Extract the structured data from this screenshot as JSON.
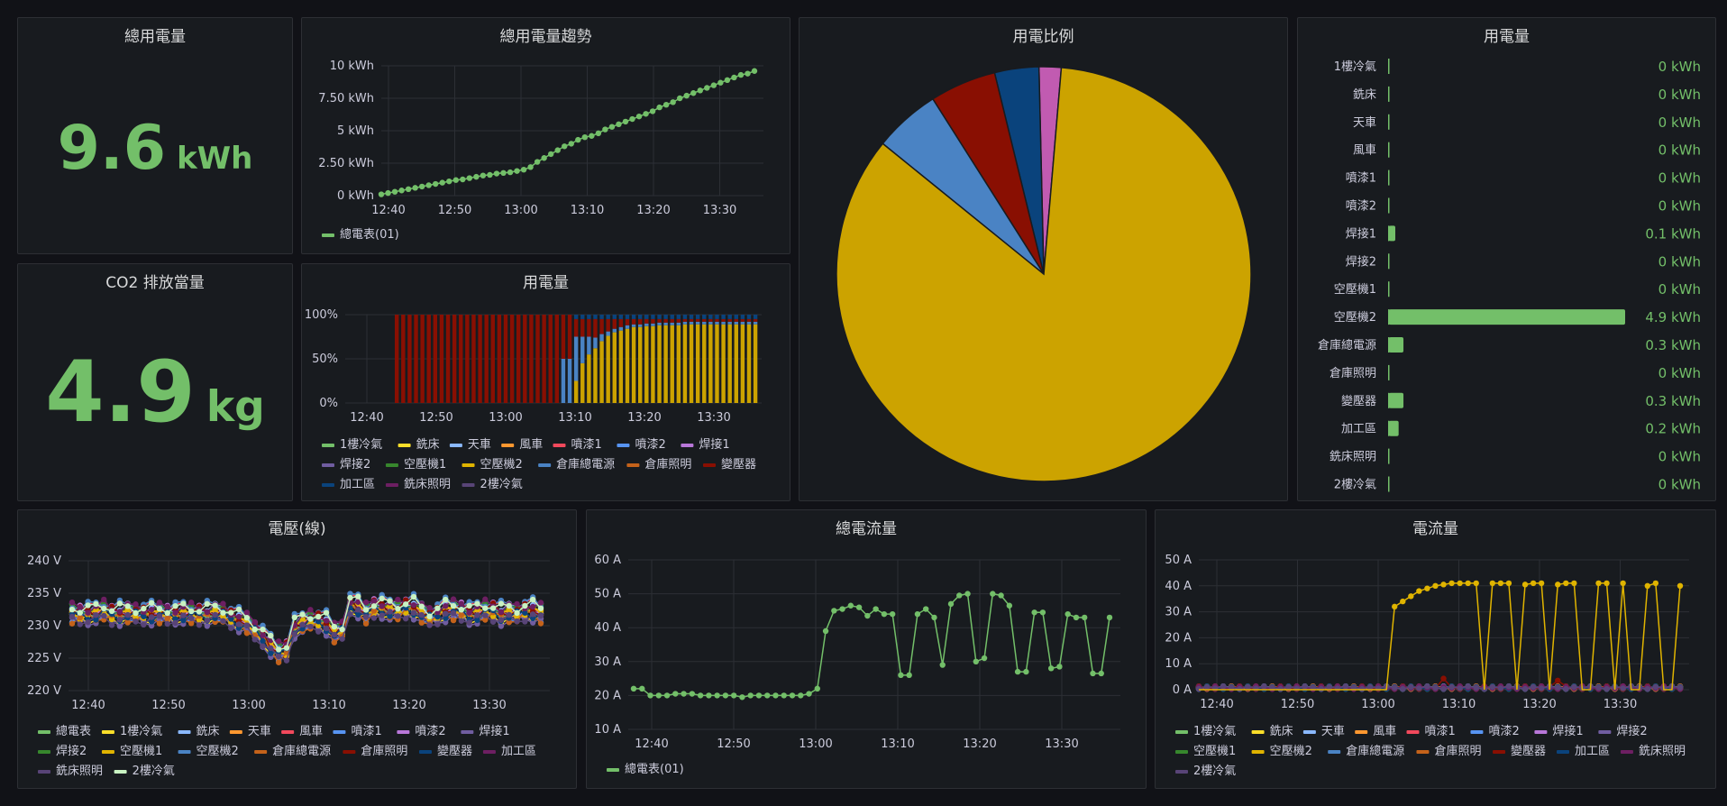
{
  "colors": {
    "green": "#73bf69",
    "yellow": "#cca300",
    "blue": "#4a83c4",
    "darkred": "#890f02",
    "navy": "#0a437c",
    "magenta": "#c15bb1",
    "grid": "#2c2f35",
    "axis": "#ccccdc"
  },
  "panels": {
    "total": {
      "title": "總用電量",
      "value": "9.6",
      "unit": "kWh"
    },
    "co2": {
      "title": "CO2 排放當量",
      "value": "4.9",
      "unit": "kg"
    },
    "trend": {
      "title": "總用電量趨勢"
    },
    "usage_stack": {
      "title": "用電量"
    },
    "pie": {
      "title": "用電比例"
    },
    "bargauge": {
      "title": "用電量"
    },
    "voltage": {
      "title": "電壓(線)"
    },
    "total_current": {
      "title": "總電流量"
    },
    "current": {
      "title": "電流量"
    }
  },
  "chart_data": [
    {
      "id": "trend",
      "type": "line",
      "x_ticks": [
        "12:40",
        "12:50",
        "13:00",
        "13:10",
        "13:20",
        "13:30"
      ],
      "y_ticks": [
        "0 kWh",
        "2.50 kWh",
        "5 kWh",
        "7.50 kWh",
        "10 kWh"
      ],
      "ylim": [
        0,
        10
      ],
      "series": [
        {
          "name": "總電表(01)",
          "color": "#73bf69",
          "values": [
            0.1,
            0.2,
            0.3,
            0.4,
            0.5,
            0.6,
            0.7,
            0.8,
            0.9,
            1.0,
            1.1,
            1.2,
            1.25,
            1.35,
            1.45,
            1.55,
            1.6,
            1.7,
            1.75,
            1.8,
            1.9,
            2.0,
            2.2,
            2.6,
            2.9,
            3.2,
            3.5,
            3.8,
            4.0,
            4.3,
            4.5,
            4.6,
            4.8,
            5.1,
            5.3,
            5.5,
            5.7,
            5.9,
            6.1,
            6.3,
            6.5,
            6.8,
            7.0,
            7.2,
            7.5,
            7.7,
            7.9,
            8.1,
            8.3,
            8.5,
            8.7,
            8.9,
            9.1,
            9.3,
            9.4,
            9.6
          ]
        }
      ]
    },
    {
      "id": "usage_stack",
      "type": "bar",
      "x_ticks": [
        "12:40",
        "12:50",
        "13:00",
        "13:10",
        "13:20",
        "13:30"
      ],
      "y_ticks": [
        "0%",
        "50%",
        "100%"
      ],
      "legend": [
        {
          "name": "1樓冷氣",
          "color": "#73bf69"
        },
        {
          "name": "銑床",
          "color": "#fade2a"
        },
        {
          "name": "天車",
          "color": "#8ab8ff"
        },
        {
          "name": "風車",
          "color": "#ff9830"
        },
        {
          "name": "噴漆1",
          "color": "#f2495c"
        },
        {
          "name": "噴漆2",
          "color": "#5794f2"
        },
        {
          "name": "焊接1",
          "color": "#b877d9"
        },
        {
          "name": "焊接2",
          "color": "#705da0"
        },
        {
          "name": "空壓機1",
          "color": "#37872d"
        },
        {
          "name": "空壓機2",
          "color": "#e0b400"
        },
        {
          "name": "倉庫總電源",
          "color": "#4a83c4"
        },
        {
          "name": "倉庫照明",
          "color": "#c4621a"
        },
        {
          "name": "變壓器",
          "color": "#890f02"
        },
        {
          "name": "加工區",
          "color": "#0a437c"
        },
        {
          "name": "銑床照明",
          "color": "#6d1f62"
        },
        {
          "name": "2樓冷氣",
          "color": "#584477"
        }
      ],
      "yellow_fraction": [
        0,
        0,
        0,
        0,
        0,
        0,
        0,
        0,
        0,
        0,
        0,
        0,
        0,
        0,
        0,
        0,
        0,
        0,
        0,
        0,
        0,
        0,
        0,
        0,
        0,
        0,
        0,
        0,
        0.25,
        0.45,
        0.55,
        0.62,
        0.7,
        0.76,
        0.8,
        0.82,
        0.84,
        0.86,
        0.86,
        0.87,
        0.87,
        0.88,
        0.88,
        0.88,
        0.88,
        0.89,
        0.89,
        0.89,
        0.89,
        0.89,
        0.89,
        0.89,
        0.89,
        0.89,
        0.89,
        0.89,
        0.89
      ],
      "blue_fraction": [
        0,
        0,
        0,
        0,
        0,
        0,
        0,
        0,
        0,
        0,
        0,
        0,
        0,
        0,
        0,
        0,
        0,
        0,
        0,
        0,
        0,
        0,
        0,
        0,
        0,
        0,
        0.5,
        0.5,
        0.5,
        0.3,
        0.2,
        0.12,
        0.08,
        0.05,
        0.04,
        0.04,
        0.04,
        0.03,
        0.03,
        0.03,
        0.03,
        0.03,
        0.03,
        0.03,
        0.03,
        0.03,
        0.03,
        0.03,
        0.03,
        0.03,
        0.03,
        0.03,
        0.03,
        0.03,
        0.03,
        0.03,
        0.03
      ]
    },
    {
      "id": "pie",
      "type": "pie",
      "slices": [
        {
          "name": "空壓機2",
          "value": 4.9,
          "color": "#cca300"
        },
        {
          "name": "倉庫總電源",
          "value": 0.3,
          "color": "#4a83c4"
        },
        {
          "name": "變壓器",
          "value": 0.3,
          "color": "#890f02"
        },
        {
          "name": "加工區",
          "value": 0.2,
          "color": "#0a437c"
        },
        {
          "name": "焊接1",
          "value": 0.1,
          "color": "#c15bb1"
        }
      ]
    },
    {
      "id": "bargauge",
      "type": "bar",
      "max": 4.9,
      "items": [
        {
          "label": "1樓冷氣",
          "value": 0,
          "text": "0 kWh"
        },
        {
          "label": "銑床",
          "value": 0,
          "text": "0 kWh"
        },
        {
          "label": "天車",
          "value": 0,
          "text": "0 kWh"
        },
        {
          "label": "風車",
          "value": 0,
          "text": "0 kWh"
        },
        {
          "label": "噴漆1",
          "value": 0,
          "text": "0 kWh"
        },
        {
          "label": "噴漆2",
          "value": 0,
          "text": "0 kWh"
        },
        {
          "label": "焊接1",
          "value": 0.1,
          "text": "0.1 kWh"
        },
        {
          "label": "焊接2",
          "value": 0,
          "text": "0 kWh"
        },
        {
          "label": "空壓機1",
          "value": 0,
          "text": "0 kWh"
        },
        {
          "label": "空壓機2",
          "value": 4.9,
          "text": "4.9 kWh"
        },
        {
          "label": "倉庫總電源",
          "value": 0.3,
          "text": "0.3 kWh"
        },
        {
          "label": "倉庫照明",
          "value": 0,
          "text": "0 kWh"
        },
        {
          "label": "變壓器",
          "value": 0.3,
          "text": "0.3 kWh"
        },
        {
          "label": "加工區",
          "value": 0.2,
          "text": "0.2 kWh"
        },
        {
          "label": "銑床照明",
          "value": 0,
          "text": "0 kWh"
        },
        {
          "label": "2樓冷氣",
          "value": 0,
          "text": "0 kWh"
        }
      ]
    },
    {
      "id": "voltage",
      "type": "line",
      "x_ticks": [
        "12:40",
        "12:50",
        "13:00",
        "13:10",
        "13:20",
        "13:30"
      ],
      "y_ticks": [
        "220 V",
        "225 V",
        "230 V",
        "235 V",
        "240 V"
      ],
      "ylim": [
        220,
        240
      ],
      "legend": [
        {
          "name": "總電表",
          "color": "#73bf69"
        },
        {
          "name": "1樓冷氣",
          "color": "#fade2a"
        },
        {
          "name": "銑床",
          "color": "#8ab8ff"
        },
        {
          "name": "天車",
          "color": "#ff9830"
        },
        {
          "name": "風車",
          "color": "#f2495c"
        },
        {
          "name": "噴漆1",
          "color": "#5794f2"
        },
        {
          "name": "噴漆2",
          "color": "#b877d9"
        },
        {
          "name": "焊接1",
          "color": "#705da0"
        },
        {
          "name": "焊接2",
          "color": "#37872d"
        },
        {
          "name": "空壓機1",
          "color": "#e0b400"
        },
        {
          "name": "空壓機2",
          "color": "#4a83c4"
        },
        {
          "name": "倉庫總電源",
          "color": "#c4621a"
        },
        {
          "name": "倉庫照明",
          "color": "#890f02"
        },
        {
          "name": "變壓器",
          "color": "#0a437c"
        },
        {
          "name": "加工區",
          "color": "#6d1f62"
        },
        {
          "name": "銑床照明",
          "color": "#584477"
        },
        {
          "name": "2樓冷氣",
          "color": "#c8f2c2"
        }
      ],
      "base": [
        232,
        232,
        232,
        232,
        232.5,
        232,
        232,
        232,
        232,
        232,
        232,
        232,
        232,
        232,
        232,
        232,
        232,
        232,
        232,
        232,
        231.5,
        231,
        230.5,
        229.5,
        228.5,
        227,
        226,
        226.5,
        230,
        230.5,
        231,
        231,
        230.5,
        229,
        229.5,
        233.5,
        233,
        232,
        233,
        233,
        232.5,
        232.5,
        233,
        233,
        232,
        231.5,
        232,
        232.5,
        232.5,
        232.5,
        232,
        232,
        232.5,
        232.5,
        232,
        232,
        232,
        232.5,
        232.5,
        232
      ]
    },
    {
      "id": "total_current",
      "type": "line",
      "x_ticks": [
        "12:40",
        "12:50",
        "13:00",
        "13:10",
        "13:20",
        "13:30"
      ],
      "y_ticks": [
        "10 A",
        "20 A",
        "30 A",
        "40 A",
        "50 A",
        "60 A"
      ],
      "ylim": [
        10,
        60
      ],
      "series": [
        {
          "name": "總電表(01)",
          "color": "#73bf69",
          "values": [
            22,
            22,
            20,
            20,
            20,
            20.5,
            20.5,
            20.5,
            20,
            20,
            20,
            20,
            20,
            19.5,
            20,
            20,
            20,
            20,
            20,
            20,
            20,
            20.5,
            22,
            39,
            45,
            45.5,
            46.5,
            46,
            43.5,
            45.5,
            44,
            44,
            26,
            26,
            44,
            45.5,
            43,
            29,
            47,
            49.5,
            50,
            30,
            31,
            50,
            49.5,
            46.5,
            27,
            27,
            44.5,
            44.5,
            28,
            28.5,
            44,
            43,
            43,
            26.5,
            26.5,
            43
          ]
        }
      ]
    },
    {
      "id": "current",
      "type": "line",
      "x_ticks": [
        "12:40",
        "12:50",
        "13:00",
        "13:10",
        "13:20",
        "13:30"
      ],
      "y_ticks": [
        "0 A",
        "10 A",
        "20 A",
        "30 A",
        "40 A",
        "50 A"
      ],
      "ylim": [
        0,
        50
      ],
      "legend": [
        {
          "name": "1樓冷氣",
          "color": "#73bf69"
        },
        {
          "name": "銑床",
          "color": "#fade2a"
        },
        {
          "name": "天車",
          "color": "#8ab8ff"
        },
        {
          "name": "風車",
          "color": "#ff9830"
        },
        {
          "name": "噴漆1",
          "color": "#f2495c"
        },
        {
          "name": "噴漆2",
          "color": "#5794f2"
        },
        {
          "name": "焊接1",
          "color": "#b877d9"
        },
        {
          "name": "焊接2",
          "color": "#705da0"
        },
        {
          "name": "空壓機1",
          "color": "#37872d"
        },
        {
          "name": "空壓機2",
          "color": "#e0b400"
        },
        {
          "name": "倉庫總電源",
          "color": "#4a83c4"
        },
        {
          "name": "倉庫照明",
          "color": "#c4621a"
        },
        {
          "name": "變壓器",
          "color": "#890f02"
        },
        {
          "name": "加工區",
          "color": "#0a437c"
        },
        {
          "name": "銑床照明",
          "color": "#6d1f62"
        },
        {
          "name": "2樓冷氣",
          "color": "#584477"
        }
      ],
      "series": [
        {
          "name": "空壓機2",
          "color": "#e0b400",
          "values": [
            0,
            0,
            0,
            0,
            0,
            0,
            0,
            0,
            0,
            0,
            0,
            0,
            0,
            0,
            0,
            0,
            0,
            0,
            0,
            0,
            0,
            0,
            0,
            0,
            32,
            34,
            36,
            38,
            39,
            40,
            40.5,
            41,
            41,
            41,
            41,
            0,
            41,
            41,
            41,
            0,
            40.5,
            41,
            41,
            0,
            40.5,
            41,
            41,
            0,
            0,
            41,
            41,
            0,
            41,
            0,
            0,
            40,
            41,
            0,
            0,
            40
          ]
        }
      ]
    }
  ]
}
